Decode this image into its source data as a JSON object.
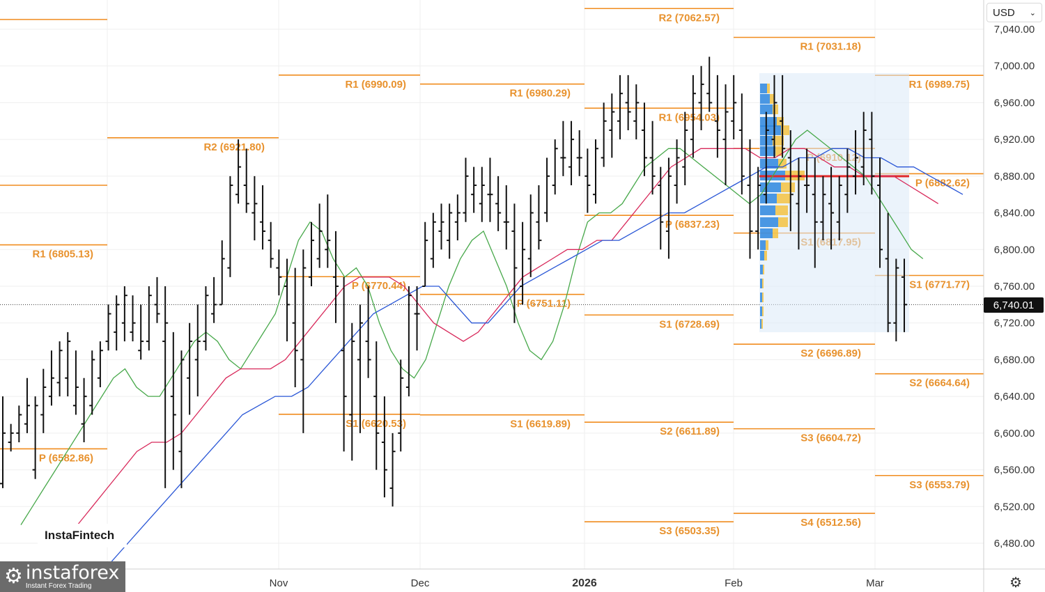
{
  "header": {
    "currency": "USD",
    "current_price": "6,740.01"
  },
  "branding": {
    "watermark": "InstaFintech",
    "logo_brand": "instaforex",
    "logo_tagline": "Instant Forex Trading"
  },
  "icons": {
    "currency_chevron": "chevron-down-icon",
    "settings": "gear-icon",
    "logo": "gear-logo-icon"
  },
  "colors": {
    "pivot_line": "#f08c1e",
    "pivot_text": "#e8922e",
    "green_ma": "#47a84a",
    "red_ma": "#d8285a",
    "blue_ma": "#2956d6",
    "poc_line": "#e02828",
    "volume_blue": "#2e86de",
    "volume_yellow": "#f5c242"
  },
  "chart_data": {
    "type": "ohlc",
    "ylim": [
      6460,
      7060
    ],
    "y_ticks": [
      "7,040.00",
      "7,000.00",
      "6,960.00",
      "6,920.00",
      "6,880.00",
      "6,840.00",
      "6,800.00",
      "6,760.00",
      "6,720.00",
      "6,680.00",
      "6,640.00",
      "6,600.00",
      "6,560.00",
      "6,520.00",
      "6,480.00"
    ],
    "x_labels": [
      {
        "label": "Nov",
        "bold": false
      },
      {
        "label": "Dec",
        "bold": false
      },
      {
        "label": "2026",
        "bold": true
      },
      {
        "label": "Feb",
        "bold": false
      },
      {
        "label": "Mar",
        "bold": false
      }
    ],
    "last_price": 6740.01,
    "pivot_levels": [
      {
        "label": "R2 (6921.80)",
        "value": 6921.8
      },
      {
        "label": "R1 (6805.13)",
        "value": 6805.13
      },
      {
        "label": "P (6582.86)",
        "value": 6582.86
      },
      {
        "label": "R1 (6990.09)",
        "value": 6990.09
      },
      {
        "label": "P (6770.44)",
        "value": 6770.44
      },
      {
        "label": "S1 (6620.53)",
        "value": 6620.53
      },
      {
        "label": "R1 (6980.29)",
        "value": 6980.29
      },
      {
        "label": "P (6751.11)",
        "value": 6751.11
      },
      {
        "label": "S1 (6619.89)",
        "value": 6619.89
      },
      {
        "label": "R2 (7062.57)",
        "value": 7062.57
      },
      {
        "label": "R1 (6954.03)",
        "value": 6954.03
      },
      {
        "label": "P (6837.23)",
        "value": 6837.23
      },
      {
        "label": "S1 (6728.69)",
        "value": 6728.69
      },
      {
        "label": "S2 (6611.89)",
        "value": 6611.89
      },
      {
        "label": "S3 (6503.35)",
        "value": 6503.35
      },
      {
        "label": "R1 (7031.18)",
        "value": 7031.18
      },
      {
        "label": "P (6910.12)",
        "value": 6910.12
      },
      {
        "label": "S1 (6817.95)",
        "value": 6817.95
      },
      {
        "label": "S2 (6696.89)",
        "value": 6696.89
      },
      {
        "label": "S3 (6604.72)",
        "value": 6604.72
      },
      {
        "label": "S4 (6512.56)",
        "value": 6512.56
      },
      {
        "label": "R1 (6989.75)",
        "value": 6989.75
      },
      {
        "label": "P (6882.62)",
        "value": 6882.62
      },
      {
        "label": "S1 (6771.77)",
        "value": 6771.77
      },
      {
        "label": "S2 (6664.64)",
        "value": 6664.64
      },
      {
        "label": "S3 (6553.79)",
        "value": 6553.79
      }
    ],
    "bars": [
      [
        6545,
        6640,
        6540,
        6600
      ],
      [
        6590,
        6610,
        6580,
        6600
      ],
      [
        6600,
        6630,
        6590,
        6620
      ],
      [
        6610,
        6660,
        6600,
        6630
      ],
      [
        6560,
        6640,
        6550,
        6630
      ],
      [
        6620,
        6670,
        6600,
        6650
      ],
      [
        6640,
        6690,
        6630,
        6660
      ],
      [
        6655,
        6700,
        6640,
        6690
      ],
      [
        6660,
        6710,
        6640,
        6700
      ],
      [
        6630,
        6690,
        6620,
        6650
      ],
      [
        6610,
        6660,
        6590,
        6640
      ],
      [
        6630,
        6690,
        6620,
        6680
      ],
      [
        6660,
        6700,
        6650,
        6690
      ],
      [
        6700,
        6740,
        6690,
        6730
      ],
      [
        6710,
        6750,
        6690,
        6740
      ],
      [
        6720,
        6760,
        6700,
        6750
      ],
      [
        6710,
        6750,
        6700,
        6720
      ],
      [
        6690,
        6740,
        6680,
        6700
      ],
      [
        6700,
        6760,
        6690,
        6750
      ],
      [
        6740,
        6770,
        6720,
        6730
      ],
      [
        6700,
        6760,
        6540,
        6720
      ],
      [
        6640,
        6710,
        6560,
        6620
      ],
      [
        6580,
        6690,
        6540,
        6680
      ],
      [
        6660,
        6720,
        6620,
        6700
      ],
      [
        6680,
        6740,
        6640,
        6700
      ],
      [
        6700,
        6760,
        6690,
        6750
      ],
      [
        6730,
        6770,
        6720,
        6740
      ],
      [
        6740,
        6810,
        6740,
        6790
      ],
      [
        6780,
        6880,
        6770,
        6870
      ],
      [
        6860,
        6920,
        6850,
        6890
      ],
      [
        6870,
        6910,
        6840,
        6850
      ],
      [
        6840,
        6880,
        6810,
        6850
      ],
      [
        6830,
        6870,
        6800,
        6820
      ],
      [
        6810,
        6830,
        6780,
        6790
      ],
      [
        6780,
        6800,
        6750,
        6770
      ],
      [
        6760,
        6790,
        6700,
        6740
      ],
      [
        6720,
        6780,
        6650,
        6690
      ],
      [
        6680,
        6800,
        6600,
        6780
      ],
      [
        6770,
        6830,
        6760,
        6810
      ],
      [
        6790,
        6850,
        6780,
        6820
      ],
      [
        6800,
        6860,
        6780,
        6810
      ],
      [
        6770,
        6820,
        6720,
        6760
      ],
      [
        6690,
        6770,
        6580,
        6640
      ],
      [
        6620,
        6720,
        6570,
        6700
      ],
      [
        6680,
        6740,
        6600,
        6720
      ],
      [
        6700,
        6760,
        6660,
        6680
      ],
      [
        6640,
        6700,
        6560,
        6600
      ],
      [
        6590,
        6640,
        6530,
        6560
      ],
      [
        6540,
        6600,
        6520,
        6580
      ],
      [
        6600,
        6680,
        6580,
        6660
      ],
      [
        6650,
        6760,
        6640,
        6750
      ],
      [
        6730,
        6760,
        6690,
        6730
      ],
      [
        6760,
        6830,
        6760,
        6810
      ],
      [
        6790,
        6840,
        6780,
        6830
      ],
      [
        6820,
        6850,
        6800,
        6830
      ],
      [
        6810,
        6850,
        6790,
        6840
      ],
      [
        6830,
        6860,
        6810,
        6840
      ],
      [
        6840,
        6900,
        6830,
        6880
      ],
      [
        6860,
        6890,
        6840,
        6870
      ],
      [
        6850,
        6890,
        6830,
        6870
      ],
      [
        6860,
        6900,
        6830,
        6860
      ],
      [
        6850,
        6880,
        6820,
        6840
      ],
      [
        6830,
        6870,
        6800,
        6830
      ],
      [
        6820,
        6850,
        6720,
        6780
      ],
      [
        6760,
        6830,
        6740,
        6800
      ],
      [
        6790,
        6860,
        6770,
        6840
      ],
      [
        6830,
        6870,
        6800,
        6810
      ],
      [
        6840,
        6900,
        6830,
        6880
      ],
      [
        6870,
        6920,
        6860,
        6910
      ],
      [
        6900,
        6940,
        6880,
        6900
      ],
      [
        6890,
        6940,
        6870,
        6920
      ],
      [
        6900,
        6930,
        6880,
        6900
      ],
      [
        6880,
        6910,
        6840,
        6870
      ],
      [
        6860,
        6920,
        6850,
        6910
      ],
      [
        6900,
        6960,
        6890,
        6940
      ],
      [
        6930,
        6970,
        6900,
        6950
      ],
      [
        6940,
        6990,
        6920,
        6970
      ],
      [
        6960,
        6990,
        6930,
        6950
      ],
      [
        6940,
        6980,
        6920,
        6960
      ],
      [
        6930,
        6960,
        6880,
        6900
      ],
      [
        6900,
        6940,
        6860,
        6880
      ],
      [
        6870,
        6890,
        6800,
        6830
      ],
      [
        6820,
        6900,
        6790,
        6880
      ],
      [
        6870,
        6920,
        6850,
        6900
      ],
      [
        6890,
        6950,
        6870,
        6930
      ],
      [
        6920,
        6990,
        6900,
        6970
      ],
      [
        6960,
        7000,
        6930,
        6980
      ],
      [
        6970,
        7010,
        6950,
        6960
      ],
      [
        6940,
        6990,
        6900,
        6930
      ],
      [
        6920,
        6980,
        6870,
        6950
      ],
      [
        6940,
        6990,
        6920,
        6960
      ],
      [
        6930,
        6970,
        6860,
        6880
      ],
      [
        6870,
        6920,
        6790,
        6820
      ],
      [
        6820,
        6890,
        6800,
        6870
      ],
      [
        6860,
        6950,
        6850,
        6930
      ],
      [
        6920,
        6990,
        6900,
        6960
      ],
      [
        6940,
        6990,
        6900,
        6910
      ],
      [
        6900,
        6930,
        6820,
        6860
      ],
      [
        6850,
        6900,
        6800,
        6880
      ],
      [
        6870,
        6910,
        6840,
        6870
      ],
      [
        6860,
        6900,
        6780,
        6830
      ],
      [
        6830,
        6880,
        6810,
        6860
      ],
      [
        6850,
        6890,
        6800,
        6840
      ],
      [
        6830,
        6880,
        6810,
        6870
      ],
      [
        6860,
        6910,
        6840,
        6890
      ],
      [
        6880,
        6930,
        6860,
        6900
      ],
      [
        6890,
        6950,
        6870,
        6930
      ],
      [
        6920,
        6950,
        6860,
        6880
      ],
      [
        6870,
        6900,
        6780,
        6800
      ],
      [
        6790,
        6840,
        6710,
        6720
      ],
      [
        6720,
        6790,
        6700,
        6780
      ],
      [
        6770,
        6790,
        6710,
        6740
      ]
    ],
    "series": [
      {
        "values": [
          6500,
          6520,
          6540,
          6560,
          6580,
          6600,
          6620,
          6640,
          6660,
          6670,
          6650,
          6640,
          6640,
          6660,
          6680,
          6700,
          6710,
          6700,
          6680,
          6670,
          6690,
          6710,
          6730,
          6770,
          6810,
          6830,
          6820,
          6790,
          6770,
          6780,
          6760,
          6720,
          6690,
          6670,
          6660,
          6680,
          6720,
          6760,
          6790,
          6810,
          6820,
          6790,
          6760,
          6720,
          6690,
          6680,
          6700,
          6740,
          6790,
          6830,
          6840,
          6840,
          6850,
          6870,
          6890,
          6900,
          6910,
          6910,
          6900,
          6890,
          6880,
          6870,
          6860,
          6850,
          6860,
          6880,
          6900,
          6920,
          6930,
          6920,
          6910,
          6900,
          6890,
          6880,
          6860,
          6840,
          6820,
          6800,
          6790
        ]
      },
      {
        "values": [
          6480,
          6500,
          6520,
          6540,
          6560,
          6580,
          6590,
          6590,
          6600,
          6620,
          6640,
          6660,
          6670,
          6670,
          6670,
          6680,
          6700,
          6720,
          6740,
          6760,
          6770,
          6770,
          6770,
          6760,
          6740,
          6720,
          6710,
          6700,
          6710,
          6730,
          6750,
          6770,
          6780,
          6790,
          6800,
          6800,
          6810,
          6810,
          6830,
          6850,
          6870,
          6890,
          6900,
          6910,
          6910,
          6910,
          6910,
          6900,
          6900,
          6910,
          6910,
          6900,
          6890,
          6890,
          6880,
          6880,
          6880,
          6870,
          6860,
          6850
        ]
      },
      {
        "values": [
          6460,
          6480,
          6500,
          6520,
          6540,
          6560,
          6580,
          6600,
          6620,
          6630,
          6640,
          6640,
          6650,
          6670,
          6690,
          6710,
          6730,
          6740,
          6750,
          6760,
          6760,
          6740,
          6720,
          6720,
          6740,
          6760,
          6770,
          6780,
          6790,
          6800,
          6810,
          6810,
          6820,
          6830,
          6840,
          6840,
          6850,
          6860,
          6870,
          6880,
          6890,
          6890,
          6900,
          6900,
          6910,
          6910,
          6900,
          6900,
          6890,
          6890,
          6880,
          6870,
          6860
        ]
      }
    ]
  }
}
